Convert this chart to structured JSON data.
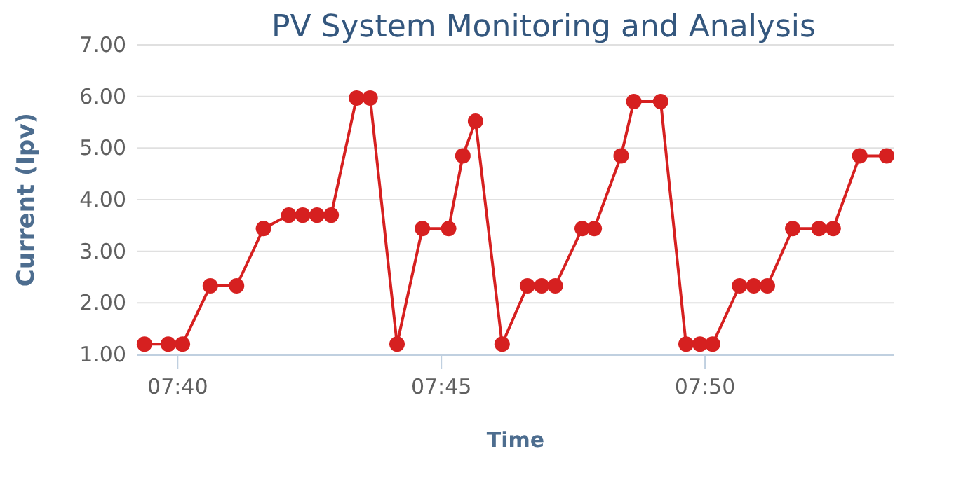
{
  "chart_data": {
    "type": "line",
    "title": "PV System Monitoring and Analysis",
    "xlabel": "Time",
    "ylabel": "Current (Ipv)",
    "x": [
      7.6562,
      7.6637,
      7.6682,
      7.677,
      7.6853,
      7.6938,
      7.7018,
      7.7062,
      7.7107,
      7.7152,
      7.7232,
      7.7275,
      7.736,
      7.744,
      7.7523,
      7.7568,
      7.7608,
      7.7692,
      7.7772,
      7.7817,
      7.786,
      7.7945,
      7.7983,
      7.8068,
      7.8108,
      7.8193,
      7.8273,
      7.8317,
      7.8357,
      7.8442,
      7.8487,
      7.853,
      7.861,
      7.8693,
      7.8738,
      7.8822,
      7.8907
    ],
    "series": [
      {
        "color": "#d62020",
        "values": [
          1.2,
          1.2,
          1.2,
          2.33,
          2.33,
          3.44,
          3.7,
          3.7,
          3.7,
          3.7,
          5.97,
          5.97,
          1.2,
          3.44,
          3.44,
          4.85,
          5.52,
          1.2,
          2.33,
          2.33,
          2.33,
          3.44,
          3.44,
          4.85,
          5.9,
          5.9,
          1.2,
          1.2,
          1.2,
          2.33,
          2.33,
          2.33,
          3.44,
          3.44,
          3.44,
          4.85,
          4.85
        ]
      }
    ],
    "xlim": [
      7.654,
      7.8929
    ],
    "xticks": [
      {
        "value": 7.6667,
        "label": "07:40"
      },
      {
        "value": 7.75,
        "label": "07:45"
      },
      {
        "value": 7.8333,
        "label": "07:50"
      }
    ],
    "ylim": [
      1,
      7
    ],
    "yticks": [
      {
        "value": 1,
        "label": "1.00"
      },
      {
        "value": 2,
        "label": "2.00"
      },
      {
        "value": 3,
        "label": "3.00"
      },
      {
        "value": 4,
        "label": "4.00"
      },
      {
        "value": 5,
        "label": "5.00"
      },
      {
        "value": 6,
        "label": "6.00"
      },
      {
        "value": 7,
        "label": "7.00"
      }
    ],
    "grid": "y",
    "marker": "circle",
    "line_style": "solid"
  }
}
